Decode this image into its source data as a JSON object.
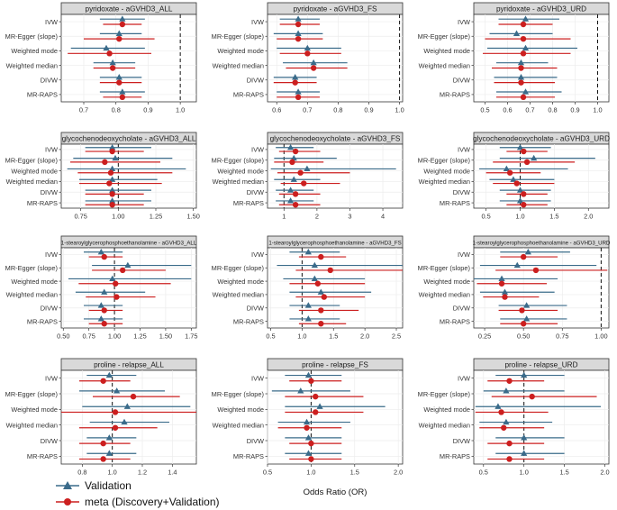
{
  "chart_data": {
    "type": "forest",
    "xlabel": "Odds Ratio (OR)",
    "methods": [
      "IVW",
      "MR-Egger (slope)",
      "Weighted mode",
      "Weighted median",
      "DIVW",
      "MR-RAPS"
    ],
    "series": [
      {
        "name": "Validation",
        "color": "#3a6b8a",
        "marker": "triangle"
      },
      {
        "name": "meta (Discovery+Validation)",
        "color": "#cc1f1f",
        "marker": "circle"
      }
    ],
    "panels": [
      {
        "title": "pyridoxate - aGVHD3_ALL",
        "xlim": [
          0.63,
          1.05
        ],
        "ticks": [
          0.7,
          0.8,
          0.9,
          1.0
        ],
        "tick_labels": [
          "0.7",
          "0.8",
          "0.9",
          "1.0"
        ],
        "small_title": false,
        "validation": [
          [
            0.82,
            0.75,
            0.89
          ],
          [
            0.81,
            0.75,
            0.88
          ],
          [
            0.77,
            0.66,
            0.89
          ],
          [
            0.79,
            0.73,
            0.86
          ],
          [
            0.81,
            0.75,
            0.88
          ],
          [
            0.82,
            0.75,
            0.89
          ]
        ],
        "meta": [
          [
            0.82,
            0.76,
            0.88
          ],
          [
            0.81,
            0.7,
            0.92
          ],
          [
            0.78,
            0.65,
            0.91
          ],
          [
            0.79,
            0.73,
            0.86
          ],
          [
            0.81,
            0.75,
            0.88
          ],
          [
            0.82,
            0.76,
            0.88
          ]
        ]
      },
      {
        "title": "pyridoxate - aGVHD3_FS",
        "xlim": [
          0.57,
          1.01
        ],
        "ticks": [
          0.6,
          0.7,
          0.8,
          0.9,
          1.0
        ],
        "tick_labels": [
          "0.6",
          "0.7",
          "0.8",
          "0.9",
          "1.0"
        ],
        "small_title": false,
        "validation": [
          [
            0.67,
            0.61,
            0.74
          ],
          [
            0.67,
            0.59,
            0.75
          ],
          [
            0.7,
            0.6,
            0.81
          ],
          [
            0.72,
            0.62,
            0.83
          ],
          [
            0.66,
            0.59,
            0.73
          ],
          [
            0.67,
            0.6,
            0.74
          ]
        ],
        "meta": [
          [
            0.67,
            0.61,
            0.74
          ],
          [
            0.67,
            0.6,
            0.75
          ],
          [
            0.7,
            0.61,
            0.81
          ],
          [
            0.72,
            0.63,
            0.83
          ],
          [
            0.66,
            0.59,
            0.73
          ],
          [
            0.67,
            0.6,
            0.74
          ]
        ]
      },
      {
        "title": "pyridoxate - aGVHD3_URD",
        "xlim": [
          0.45,
          1.05
        ],
        "ticks": [
          0.5,
          0.6,
          0.7,
          0.8,
          0.9,
          1.0
        ],
        "tick_labels": [
          "0.5",
          "0.6",
          "0.7",
          "0.8",
          "0.9",
          "1.0"
        ],
        "small_title": false,
        "validation": [
          [
            0.68,
            0.56,
            0.83
          ],
          [
            0.64,
            0.52,
            0.8
          ],
          [
            0.68,
            0.51,
            0.91
          ],
          [
            0.66,
            0.55,
            0.78
          ],
          [
            0.66,
            0.54,
            0.82
          ],
          [
            0.68,
            0.55,
            0.84
          ]
        ],
        "meta": [
          [
            0.67,
            0.56,
            0.8
          ],
          [
            0.67,
            0.5,
            0.88
          ],
          [
            0.67,
            0.49,
            0.88
          ],
          [
            0.66,
            0.53,
            0.82
          ],
          [
            0.66,
            0.54,
            0.81
          ],
          [
            0.67,
            0.55,
            0.81
          ]
        ]
      },
      {
        "title": "glycochenodeoxycholate - aGVHD3_ALL",
        "xlim": [
          0.62,
          1.52
        ],
        "ticks": [
          0.75,
          1.0,
          1.25,
          1.5
        ],
        "tick_labels": [
          "0.75",
          "1.00",
          "1.25",
          "1.50"
        ],
        "small_title": false,
        "validation": [
          [
            0.96,
            0.78,
            1.22
          ],
          [
            0.98,
            0.7,
            1.36
          ],
          [
            0.96,
            0.66,
            1.45
          ],
          [
            0.96,
            0.74,
            1.26
          ],
          [
            0.96,
            0.78,
            1.22
          ],
          [
            0.96,
            0.78,
            1.22
          ]
        ],
        "meta": [
          [
            0.96,
            0.78,
            1.17
          ],
          [
            0.91,
            0.68,
            1.28
          ],
          [
            0.95,
            0.73,
            1.36
          ],
          [
            0.94,
            0.74,
            1.29
          ],
          [
            0.96,
            0.78,
            1.17
          ],
          [
            0.96,
            0.78,
            1.17
          ]
        ]
      },
      {
        "title": "glycochenodeoxycholate - aGVHD3_FS",
        "xlim": [
          0.5,
          4.6
        ],
        "ticks": [
          1,
          2,
          3,
          4
        ],
        "tick_labels": [
          "1",
          "2",
          "3",
          "4"
        ],
        "small_title": false,
        "validation": [
          [
            1.2,
            0.75,
            1.9
          ],
          [
            1.3,
            0.7,
            2.6
          ],
          [
            1.7,
            0.6,
            4.4
          ],
          [
            1.3,
            0.7,
            2.1
          ],
          [
            1.2,
            0.75,
            1.9
          ],
          [
            1.2,
            0.75,
            1.9
          ]
        ],
        "meta": [
          [
            1.35,
            0.85,
            2.1
          ],
          [
            1.25,
            0.7,
            2.2
          ],
          [
            1.5,
            0.8,
            3.0
          ],
          [
            1.6,
            0.9,
            2.7
          ],
          [
            1.35,
            0.85,
            2.1
          ],
          [
            1.35,
            0.85,
            2.1
          ]
        ]
      },
      {
        "title": "glycochenodeoxycholate - aGVHD3_URD",
        "xlim": [
          0.32,
          2.3
        ],
        "ticks": [
          0.5,
          1.0,
          1.5,
          2.0
        ],
        "tick_labels": [
          "0.5",
          "1.0",
          "1.5",
          "2.0"
        ],
        "small_title": false,
        "validation": [
          [
            1.0,
            0.7,
            1.45
          ],
          [
            1.2,
            0.7,
            2.1
          ],
          [
            0.8,
            0.4,
            1.7
          ],
          [
            0.9,
            0.55,
            1.5
          ],
          [
            1.0,
            0.7,
            1.45
          ],
          [
            1.0,
            0.7,
            1.45
          ]
        ],
        "meta": [
          [
            1.05,
            0.8,
            1.4
          ],
          [
            1.1,
            0.6,
            1.8
          ],
          [
            0.85,
            0.5,
            1.3
          ],
          [
            0.95,
            0.6,
            1.5
          ],
          [
            1.05,
            0.8,
            1.4
          ],
          [
            1.05,
            0.8,
            1.4
          ]
        ]
      },
      {
        "title": "1-stearoylglycerophosphoethanolamine - aGVHD3_ALL",
        "xlim": [
          0.48,
          1.8
        ],
        "ticks": [
          0.5,
          0.75,
          1.0,
          1.25,
          1.5,
          1.75
        ],
        "tick_labels": [
          "0.50",
          "0.75",
          "1.00",
          "1.25",
          "1.50",
          "1.75"
        ],
        "small_title": true,
        "validation": [
          [
            0.87,
            0.7,
            1.08
          ],
          [
            1.13,
            0.78,
            1.75
          ],
          [
            0.98,
            0.55,
            1.75
          ],
          [
            0.9,
            0.62,
            1.3
          ],
          [
            0.87,
            0.7,
            1.08
          ],
          [
            0.87,
            0.7,
            1.08
          ]
        ],
        "meta": [
          [
            0.9,
            0.75,
            1.08
          ],
          [
            1.08,
            0.78,
            1.5
          ],
          [
            1.01,
            0.65,
            1.55
          ],
          [
            1.02,
            0.72,
            1.4
          ],
          [
            0.9,
            0.75,
            1.08
          ],
          [
            0.9,
            0.75,
            1.08
          ]
        ]
      },
      {
        "title": "1-stearoylglycerophosphoethanolamine - aGVHD3_FS",
        "xlim": [
          0.45,
          2.6
        ],
        "ticks": [
          0.5,
          1.0,
          1.5,
          2.0,
          2.5
        ],
        "tick_labels": [
          "0.5",
          "1.0",
          "1.5",
          "2.0",
          "2.5"
        ],
        "small_title": true,
        "validation": [
          [
            1.1,
            0.8,
            1.6
          ],
          [
            1.2,
            0.6,
            2.6
          ],
          [
            1.2,
            0.7,
            2.0
          ],
          [
            1.3,
            0.8,
            2.1
          ],
          [
            1.1,
            0.8,
            1.6
          ],
          [
            1.1,
            0.8,
            1.6
          ]
        ],
        "meta": [
          [
            1.3,
            0.95,
            1.7
          ],
          [
            1.45,
            0.9,
            2.6
          ],
          [
            1.25,
            0.8,
            2.0
          ],
          [
            1.35,
            0.9,
            2.0
          ],
          [
            1.3,
            0.95,
            1.9
          ],
          [
            1.3,
            0.95,
            1.7
          ]
        ]
      },
      {
        "title": "1-stearoylglycerophosphoethanolamine - aGVHD3_URD",
        "xlim": [
          0.18,
          1.05
        ],
        "ticks": [
          0.25,
          0.5,
          0.75,
          1.0
        ],
        "tick_labels": [
          "0.25",
          "0.50",
          "0.75",
          "1.00"
        ],
        "small_title": true,
        "validation": [
          [
            0.53,
            0.35,
            0.8
          ],
          [
            0.46,
            0.22,
            0.97
          ],
          [
            0.36,
            0.18,
            0.72
          ],
          [
            0.38,
            0.22,
            0.7
          ],
          [
            0.52,
            0.34,
            0.78
          ],
          [
            0.52,
            0.35,
            0.78
          ]
        ],
        "meta": [
          [
            0.5,
            0.35,
            0.72
          ],
          [
            0.58,
            0.32,
            1.04
          ],
          [
            0.36,
            0.2,
            0.65
          ],
          [
            0.38,
            0.24,
            0.6
          ],
          [
            0.49,
            0.34,
            0.72
          ],
          [
            0.5,
            0.35,
            0.72
          ]
        ]
      },
      {
        "title": "proline - relapse_ALL",
        "xlim": [
          0.66,
          1.56
        ],
        "ticks": [
          0.8,
          1.0,
          1.2,
          1.4
        ],
        "tick_labels": [
          "0.8",
          "1.0",
          "1.2",
          "1.4"
        ],
        "small_title": false,
        "validation": [
          [
            0.98,
            0.83,
            1.16
          ],
          [
            1.03,
            0.78,
            1.35
          ],
          [
            1.1,
            0.8,
            1.52
          ],
          [
            1.08,
            0.85,
            1.38
          ],
          [
            0.98,
            0.83,
            1.16
          ],
          [
            0.98,
            0.83,
            1.16
          ]
        ],
        "meta": [
          [
            0.94,
            0.78,
            1.12
          ],
          [
            1.14,
            0.87,
            1.45
          ],
          [
            1.02,
            0.66,
            1.58
          ],
          [
            1.02,
            0.78,
            1.3
          ],
          [
            0.94,
            0.78,
            1.12
          ],
          [
            0.94,
            0.78,
            1.12
          ]
        ]
      },
      {
        "title": "proline - relapse_FS",
        "xlim": [
          0.5,
          2.05
        ],
        "ticks": [
          0.5,
          1.0,
          1.5,
          2.0
        ],
        "tick_labels": [
          "0.5",
          "1.0",
          "1.5",
          "2.0"
        ],
        "small_title": false,
        "validation": [
          [
            0.97,
            0.7,
            1.35
          ],
          [
            0.88,
            0.55,
            1.45
          ],
          [
            1.1,
            0.7,
            1.85
          ],
          [
            0.95,
            0.62,
            1.45
          ],
          [
            0.97,
            0.7,
            1.35
          ],
          [
            0.97,
            0.7,
            1.35
          ]
        ],
        "meta": [
          [
            1.0,
            0.75,
            1.35
          ],
          [
            1.05,
            0.7,
            1.6
          ],
          [
            1.05,
            0.7,
            1.6
          ],
          [
            0.95,
            0.62,
            1.35
          ],
          [
            1.0,
            0.75,
            1.35
          ],
          [
            1.0,
            0.75,
            1.35
          ]
        ]
      },
      {
        "title": "proline - relapse_URD",
        "xlim": [
          0.38,
          2.05
        ],
        "ticks": [
          0.5,
          1.0,
          1.5,
          2.0
        ],
        "tick_labels": [
          "0.5",
          "1.0",
          "1.5",
          "2.0"
        ],
        "small_title": false,
        "validation": [
          [
            1.0,
            0.65,
            1.5
          ],
          [
            0.78,
            0.5,
            1.5
          ],
          [
            0.68,
            0.4,
            1.95
          ],
          [
            0.78,
            0.45,
            1.35
          ],
          [
            1.0,
            0.65,
            1.5
          ],
          [
            1.0,
            0.65,
            1.5
          ]
        ],
        "meta": [
          [
            0.82,
            0.55,
            1.25
          ],
          [
            1.1,
            0.6,
            1.9
          ],
          [
            0.72,
            0.4,
            1.3
          ],
          [
            0.75,
            0.45,
            1.25
          ],
          [
            0.82,
            0.55,
            1.25
          ],
          [
            0.82,
            0.55,
            1.25
          ]
        ]
      }
    ]
  }
}
